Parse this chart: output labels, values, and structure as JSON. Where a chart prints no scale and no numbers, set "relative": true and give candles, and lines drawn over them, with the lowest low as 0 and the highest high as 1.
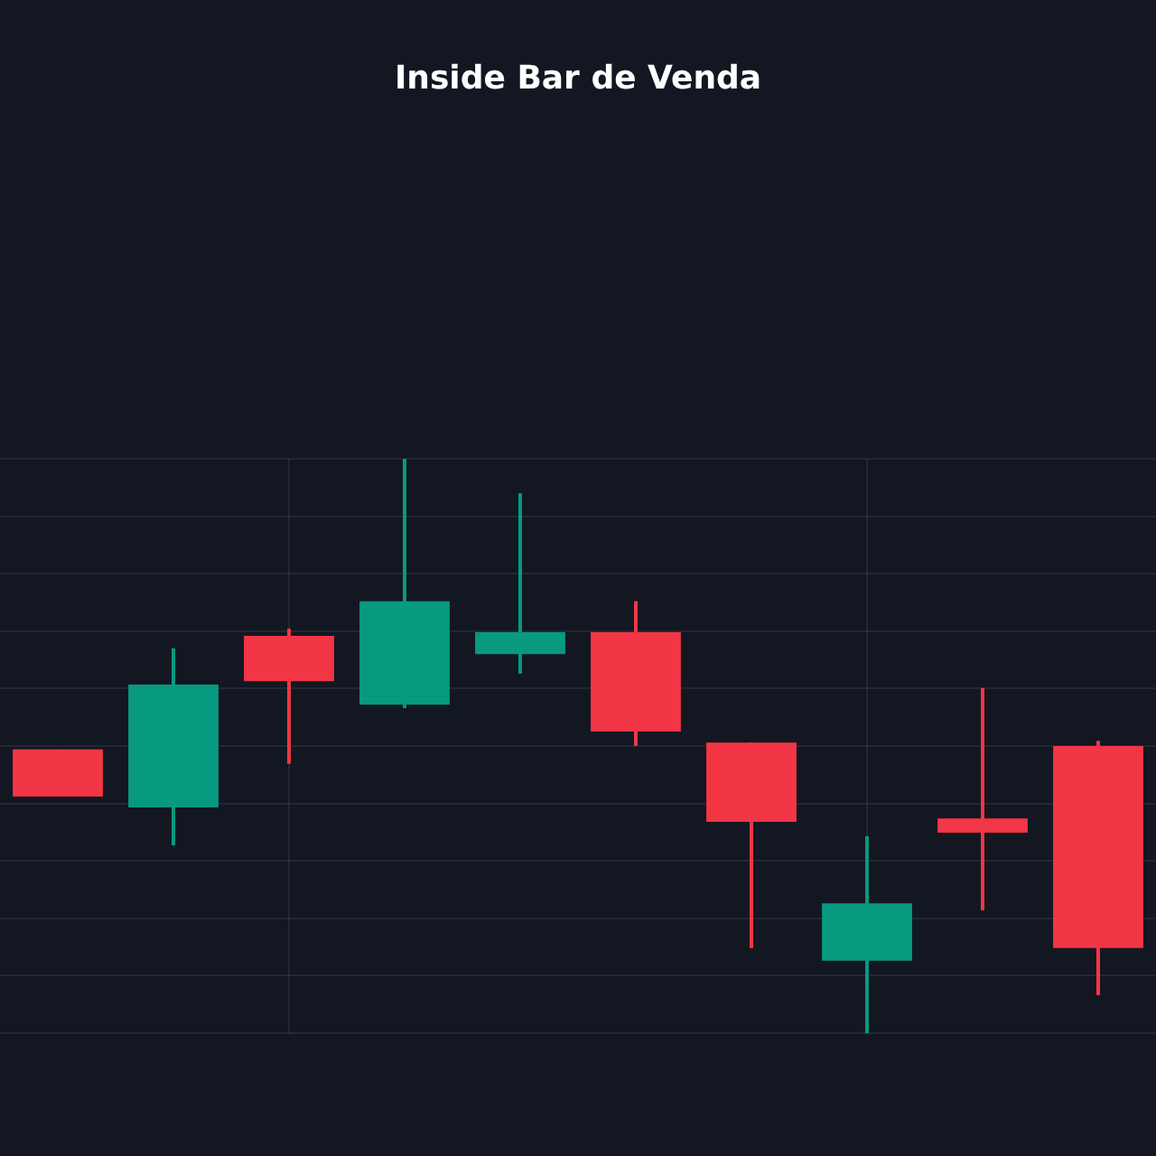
{
  "chart_data": {
    "type": "candlestick",
    "title": "Inside Bar de Venda",
    "relative": true,
    "grid": true,
    "categories": [
      null,
      null,
      null,
      null,
      null,
      null,
      null,
      null,
      null,
      null
    ],
    "ohlc": [
      [
        0.494,
        0.494,
        0.412,
        0.412
      ],
      [
        0.393,
        0.67,
        0.327,
        0.607
      ],
      [
        0.692,
        0.704,
        0.469,
        0.613
      ],
      [
        0.572,
        1,
        0.566,
        0.752
      ],
      [
        0.66,
        0.94,
        0.626,
        0.698
      ],
      [
        0.698,
        0.752,
        0.5,
        0.525
      ],
      [
        0.506,
        0.506,
        0.148,
        0.368
      ],
      [
        0.126,
        0.343,
        0,
        0.226
      ],
      [
        0.374,
        0.601,
        0.214,
        0.349
      ],
      [
        0.5,
        0.509,
        0.066,
        0.148
      ]
    ],
    "colors": [
      "#f23645",
      "#089981",
      "#f23645",
      "#089981",
      "#089981",
      "#f23645",
      "#f23645",
      "#089981",
      "#f23645",
      "#f23645"
    ]
  }
}
